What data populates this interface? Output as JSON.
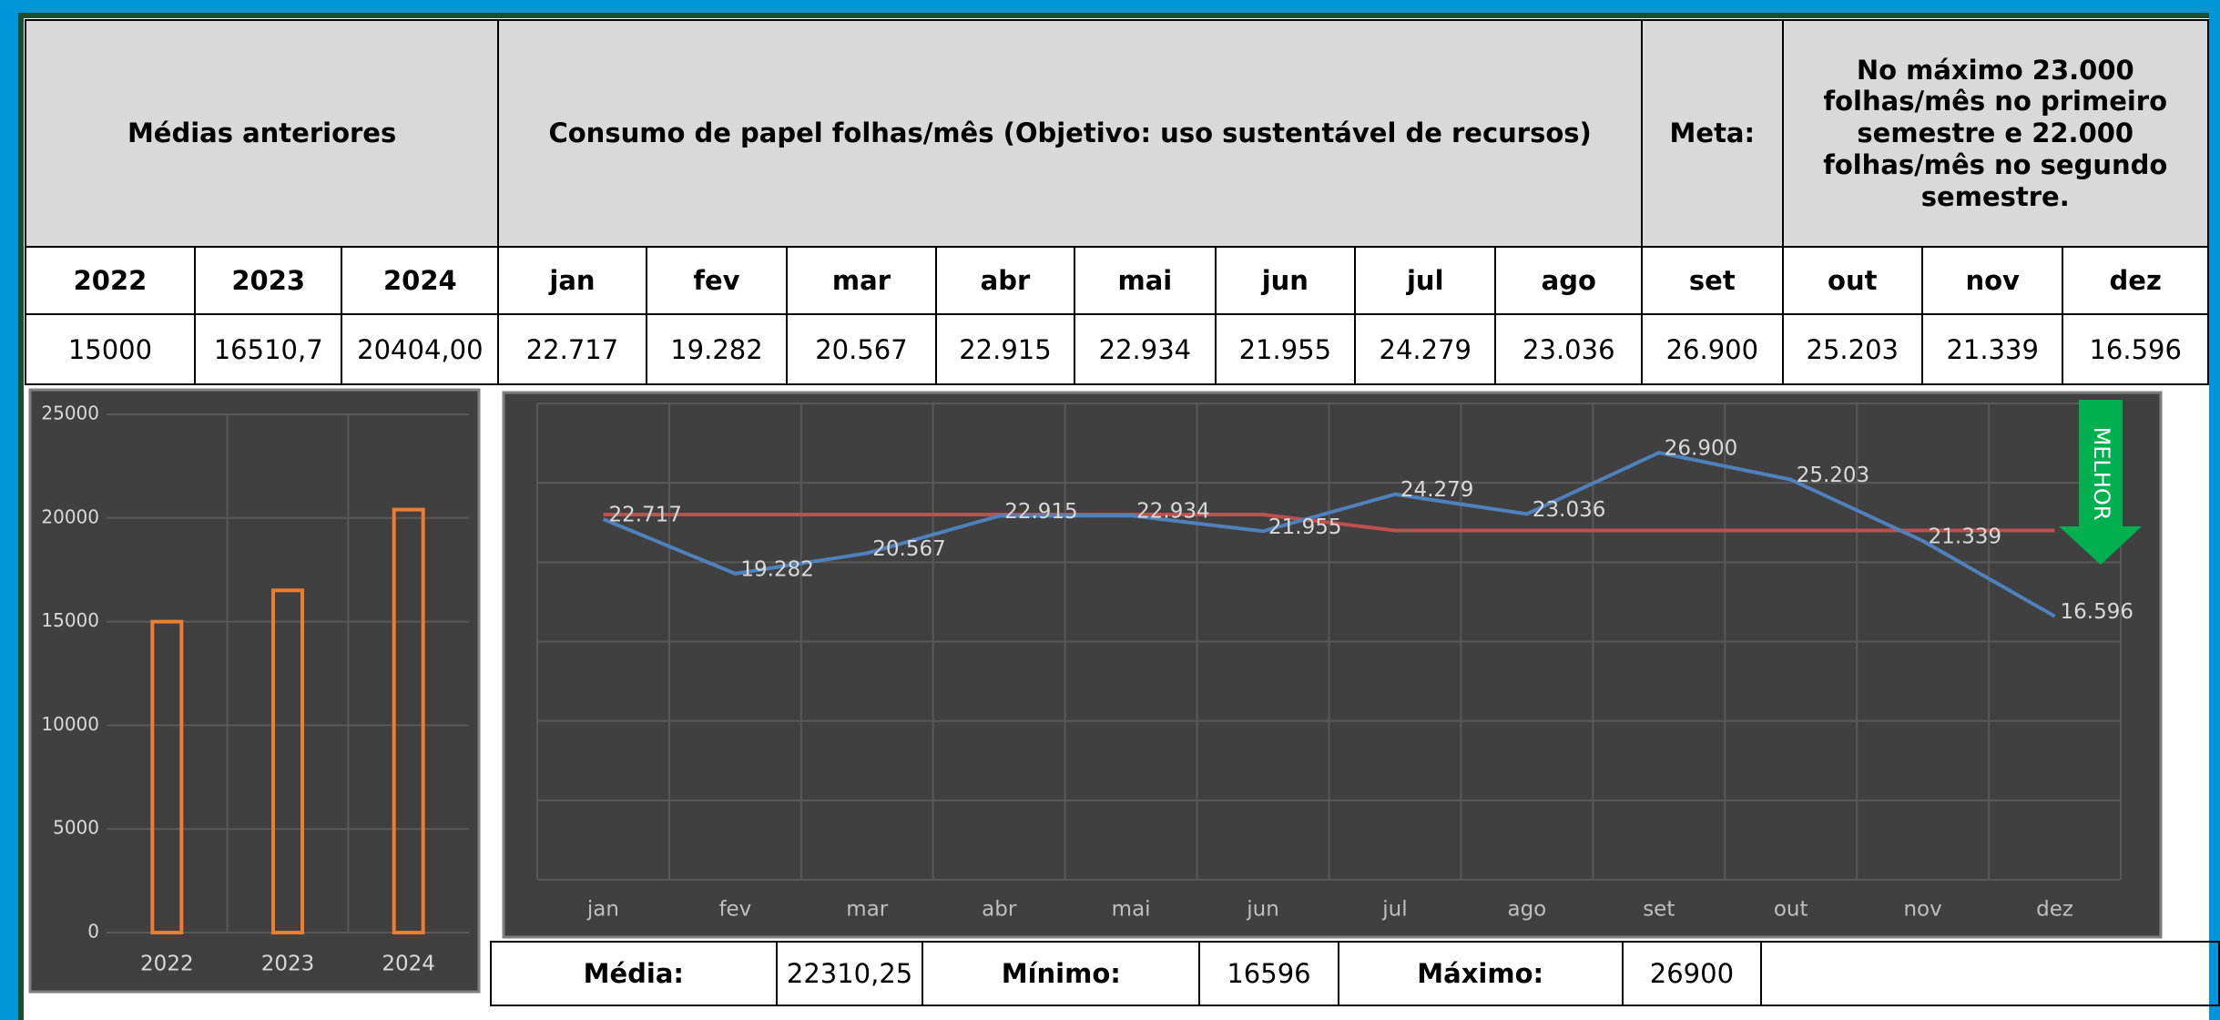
{
  "table": {
    "header": [
      "Médias anteriores",
      "Consumo de papel folhas/mês  (Objetivo: uso sustentável de recursos)",
      "Meta:",
      "No máximo 23.000 folhas/mês no primeiro semestre e 22.000 folhas/mês no segundo semestre."
    ],
    "columns": [
      "2022",
      "2023",
      "2024",
      "jan",
      "fev",
      "mar",
      "abr",
      "mai",
      "jun",
      "jul",
      "ago",
      "set",
      "out",
      "nov",
      "dez"
    ],
    "values": [
      "15000",
      "16510,7",
      "20404,00",
      "22.717",
      "19.282",
      "20.567",
      "22.915",
      "22.934",
      "21.955",
      "24.279",
      "23.036",
      "26.900",
      "25.203",
      "21.339",
      "16.596"
    ]
  },
  "summary": [
    "Média:",
    "22310,25",
    "Mínimo:",
    "16596",
    "Máximo:",
    "26900"
  ],
  "chart_data": [
    {
      "type": "bar",
      "categories": [
        "2022",
        "2023",
        "2024"
      ],
      "values": [
        15000,
        16510.7,
        20404
      ],
      "color": "#ed7d31",
      "ylim": [
        0,
        25000
      ],
      "yticks": [
        0,
        5000,
        10000,
        15000,
        20000,
        25000
      ],
      "grid": true
    },
    {
      "type": "line",
      "categories": [
        "jan",
        "fev",
        "mar",
        "abr",
        "mai",
        "jun",
        "jul",
        "ago",
        "set",
        "out",
        "nov",
        "dez"
      ],
      "series": [
        {
          "color": "#4f81bd",
          "values": [
            22717,
            19282,
            20567,
            22915,
            22934,
            21955,
            24279,
            23036,
            26900,
            25203,
            21339,
            16596
          ],
          "value_labels": [
            "22.717",
            "19.282",
            "20.567",
            "22.915",
            "22.934",
            "21.955",
            "24.279",
            "23.036",
            "26.900",
            "25.203",
            "21.339",
            "16.596"
          ]
        },
        {
          "color": "#c0504d",
          "values": [
            23000,
            23000,
            23000,
            23000,
            23000,
            23000,
            22000,
            22000,
            22000,
            22000,
            22000,
            22000
          ]
        }
      ],
      "ylim": [
        0,
        30000
      ],
      "yticks": [
        0,
        5000,
        10000,
        15000,
        20000,
        25000,
        30000
      ],
      "ytick_labels": false,
      "grid": true,
      "annotation": "MELHOR"
    }
  ]
}
